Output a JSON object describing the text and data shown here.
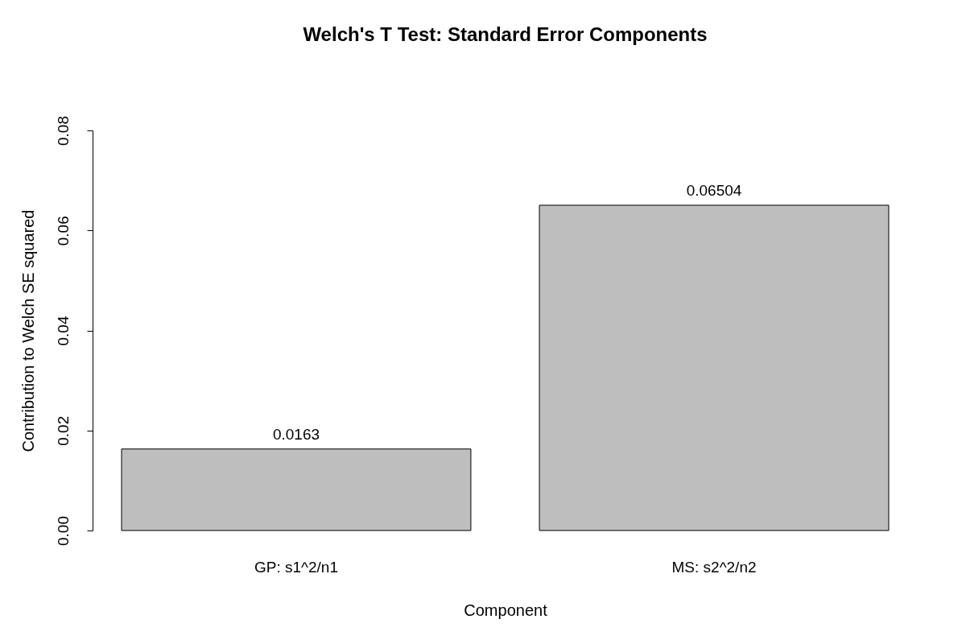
{
  "chart_data": {
    "type": "bar",
    "title": "Welch's T Test: Standard Error Components",
    "xlabel": "Component",
    "ylabel": "Contribution to Welch SE squared",
    "categories": [
      "GP: s1^2/n1",
      "MS: s2^2/n2"
    ],
    "values": [
      0.0163,
      0.06504
    ],
    "color": "#bebebe",
    "ylim": [
      0,
      0.08
    ],
    "yticks": [
      {
        "value": 0,
        "label": "0.00"
      },
      {
        "value": 0.02,
        "label": "0.02"
      },
      {
        "value": 0.04,
        "label": "0.04"
      },
      {
        "value": 0.06,
        "label": "0.06"
      },
      {
        "value": 0.08,
        "label": "0.08"
      }
    ],
    "data_labels": true,
    "grid": false
  }
}
